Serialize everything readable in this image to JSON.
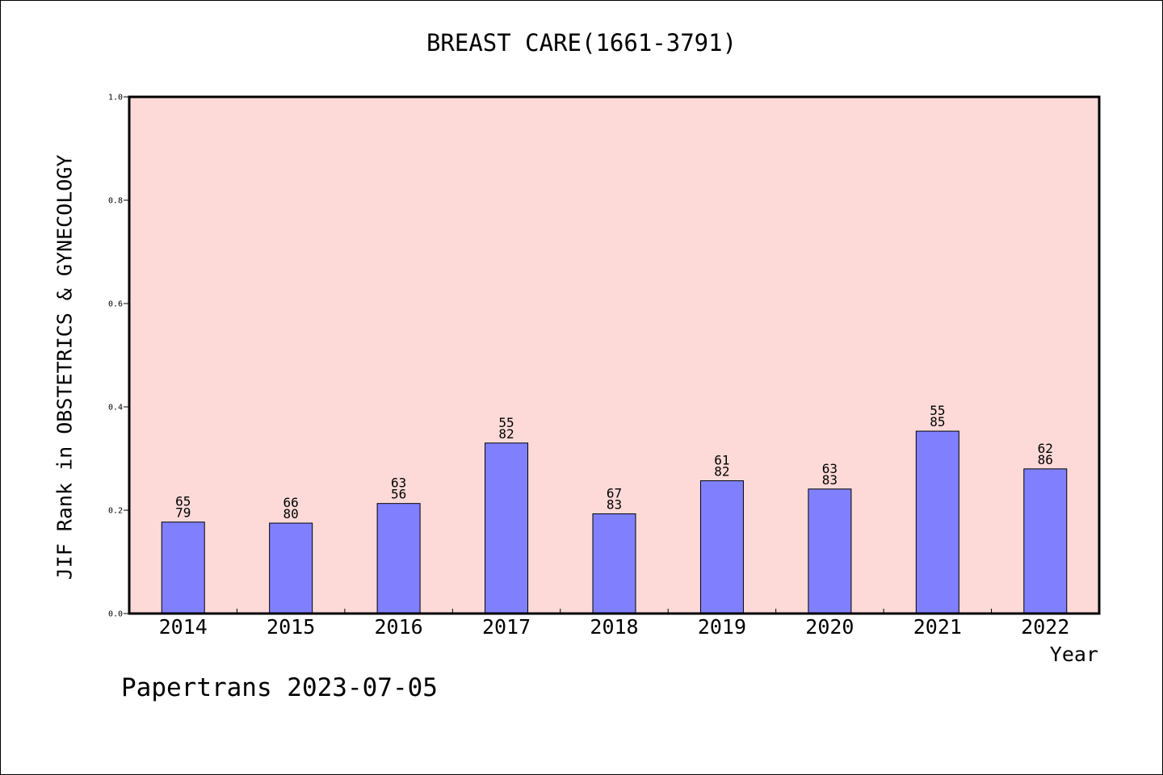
{
  "chart_data": {
    "type": "bar",
    "title": "BREAST CARE(1661-3791)",
    "xlabel": "Year",
    "ylabel": "JIF Rank in OBSTETRICS & GYNECOLOGY",
    "ylim": [
      0,
      1.0
    ],
    "yticks": [
      "0.0",
      "0.2",
      "0.4",
      "0.6",
      "0.8",
      "1.0"
    ],
    "categories": [
      "2014",
      "2015",
      "2016",
      "2017",
      "2018",
      "2019",
      "2020",
      "2021",
      "2022"
    ],
    "values": [
      0.177,
      0.175,
      0.213,
      0.33,
      0.193,
      0.257,
      0.241,
      0.353,
      0.28
    ],
    "labels_top": [
      "65",
      "66",
      "63",
      "55",
      "67",
      "61",
      "63",
      "55",
      "62"
    ],
    "labels_bottom": [
      "79",
      "80",
      "56",
      "82",
      "83",
      "82",
      "83",
      "85",
      "86"
    ],
    "grid": false,
    "colors": {
      "plot_background": "#fddad8",
      "bar_fill": "#8080ff",
      "bar_stroke": "#000000"
    }
  },
  "footer": {
    "watermark": "Papertrans 2023-07-05"
  }
}
